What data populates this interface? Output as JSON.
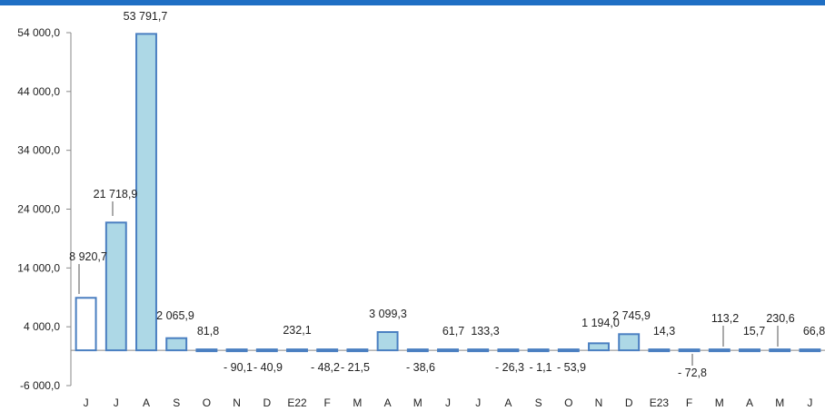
{
  "colors": {
    "top_band": "#1f6fc4",
    "bar_fill": "#add8e6",
    "bar_stroke": "#4a7fc1",
    "first_bar_fill": "#ffffff",
    "axis": "#888888"
  },
  "chart_data": {
    "type": "bar",
    "title": "",
    "xlabel": "",
    "ylabel": "",
    "ylim": [
      -6000,
      54000
    ],
    "yticks": [
      54000,
      44000,
      34000,
      24000,
      14000,
      4000,
      -6000
    ],
    "ytick_labels": [
      "54 000,0",
      "44 000,0",
      "34 000,0",
      "24 000,0",
      "14 000,0",
      "4 000,0",
      "-6 000,0"
    ],
    "grid": false,
    "categories": [
      "J",
      "J",
      "A",
      "S",
      "O",
      "N",
      "D",
      "E22",
      "F",
      "M",
      "A",
      "M",
      "J",
      "J",
      "A",
      "S",
      "O",
      "N",
      "D",
      "E23",
      "F",
      "M",
      "A",
      "M",
      "J"
    ],
    "values": [
      8920.7,
      21718.9,
      53791.7,
      2065.9,
      81.8,
      -90.1,
      -40.9,
      232.1,
      -48.2,
      -21.5,
      3099.3,
      -38.6,
      61.7,
      133.3,
      -26.3,
      -1.1,
      -53.9,
      1194.0,
      2745.9,
      14.3,
      -72.8,
      113.2,
      15.7,
      230.6,
      66.8
    ],
    "data_labels": [
      "8 920,7",
      "21 718,9",
      "53 791,7",
      "2 065,9",
      "81,8",
      "- 90,1",
      "- 40,9",
      "232,1",
      "- 48,2",
      "- 21,5",
      "3 099,3",
      "- 38,6",
      "61,7",
      "133,3",
      "- 26,3",
      "- 1,1",
      "- 53,9",
      "1 194,0",
      "2 745,9",
      "14,3",
      "- 72,8",
      "113,2",
      "15,7",
      "230,6",
      "66,8"
    ]
  }
}
